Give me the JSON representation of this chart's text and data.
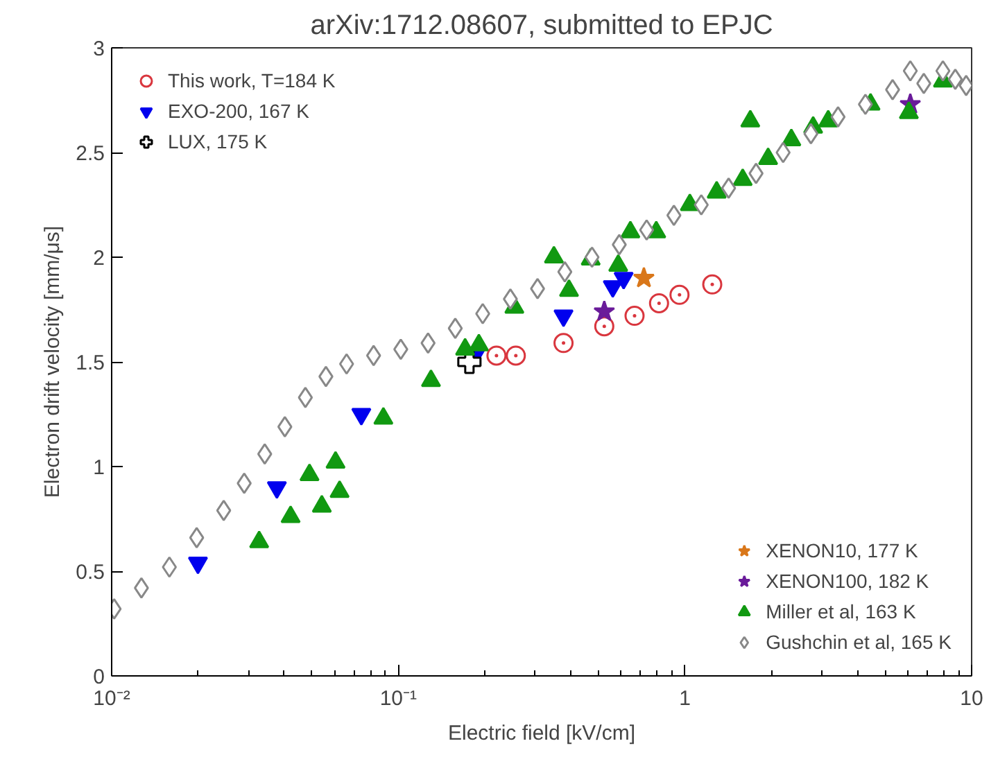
{
  "chart_data": {
    "type": "scatter",
    "title": "arXiv:1712.08607, submitted to EPJC",
    "xlabel": "Electric field [kV/cm]",
    "ylabel": "Electron drift velocity [mm/μs]",
    "log": "x",
    "grid": false,
    "legend": [
      "top left",
      "bottom right"
    ],
    "xlim": [
      0.01,
      10
    ],
    "ylim": [
      0,
      3
    ],
    "xticks": [
      {
        "value": 0.01,
        "label": "10⁻²"
      },
      {
        "value": 0.02,
        "label": null
      },
      {
        "value": 0.03,
        "label": null
      },
      {
        "value": 0.04,
        "label": null
      },
      {
        "value": 0.05,
        "label": null
      },
      {
        "value": 0.06,
        "label": null
      },
      {
        "value": 0.07,
        "label": null
      },
      {
        "value": 0.08,
        "label": null
      },
      {
        "value": 0.09,
        "label": null
      },
      {
        "value": 0.1,
        "label": "10⁻¹"
      },
      {
        "value": 0.2,
        "label": null
      },
      {
        "value": 0.3,
        "label": null
      },
      {
        "value": 0.4,
        "label": null
      },
      {
        "value": 0.5,
        "label": null
      },
      {
        "value": 0.6,
        "label": null
      },
      {
        "value": 0.7,
        "label": null
      },
      {
        "value": 0.8,
        "label": null
      },
      {
        "value": 0.9,
        "label": null
      },
      1,
      {
        "value": 2,
        "label": null
      },
      {
        "value": 3,
        "label": null
      },
      {
        "value": 4,
        "label": null
      },
      {
        "value": 5,
        "label": null
      },
      {
        "value": 6,
        "label": null
      },
      {
        "value": 7,
        "label": null
      },
      {
        "value": 8,
        "label": null
      },
      {
        "value": 9,
        "label": null
      },
      10
    ],
    "yticks": [
      0,
      0.5,
      1,
      1.5,
      2,
      2.5,
      3
    ],
    "series": [
      {
        "name": "This work, T=184 K",
        "color": "#d9363e",
        "marker": "circle",
        "x": [
          0.22,
          0.257,
          0.377,
          0.523,
          0.667,
          0.812,
          0.957,
          1.245
        ],
        "values": [
          1.53,
          1.53,
          1.59,
          1.67,
          1.72,
          1.78,
          1.82,
          1.87
        ]
      },
      {
        "name": "EXO-200, 167 K",
        "color": "#0000ee",
        "x": [
          0.02,
          0.0377,
          0.0743,
          0.185,
          0.377,
          0.56,
          0.611
        ],
        "values": [
          0.54,
          0.9,
          1.25,
          1.53,
          1.72,
          1.86,
          1.9
        ]
      },
      {
        "name": "LUX, 175 K",
        "color": "#000000",
        "marker": "cross",
        "x": [
          0.177
        ],
        "values": [
          1.5
        ]
      },
      {
        "name": "XENON10, 177 K",
        "color": "#d9771a",
        "marker": "star",
        "x": [
          0.719
        ],
        "values": [
          1.9
        ]
      },
      {
        "name": "XENON100, 182 K",
        "color": "#6a1b9a",
        "marker": "star",
        "x": [
          0.523,
          6.11
        ],
        "values": [
          1.74,
          2.73
        ]
      },
      {
        "name": "Miller et al, 163 K",
        "color": "#119911",
        "marker": "triangle",
        "x": [
          0.0327,
          0.0421,
          0.049,
          0.0541,
          0.0604,
          0.0624,
          0.0887,
          0.13,
          0.171,
          0.191,
          0.254,
          0.349,
          0.394,
          0.469,
          0.585,
          0.645,
          0.794,
          1.04,
          1.29,
          1.59,
          1.69,
          1.95,
          2.35,
          2.8,
          3.16,
          4.44,
          6.04,
          7.94
        ],
        "values": [
          0.64,
          0.76,
          0.96,
          0.81,
          1.02,
          0.88,
          1.23,
          1.41,
          1.56,
          1.58,
          1.76,
          2.0,
          1.84,
          1.99,
          1.96,
          2.12,
          2.12,
          2.25,
          2.31,
          2.37,
          2.65,
          2.47,
          2.56,
          2.62,
          2.65,
          2.73,
          2.69,
          2.84
        ]
      },
      {
        "name": "Gushchin et al, 165 K",
        "color": "#888888",
        "marker": "diamond",
        "x": [
          0.0102,
          0.0127,
          0.0159,
          0.0198,
          0.0246,
          0.029,
          0.0342,
          0.0402,
          0.0474,
          0.0559,
          0.066,
          0.082,
          0.102,
          0.127,
          0.158,
          0.197,
          0.246,
          0.306,
          0.381,
          0.474,
          0.59,
          0.735,
          0.915,
          1.14,
          1.42,
          1.77,
          2.2,
          2.75,
          3.42,
          4.26,
          5.3,
          6.11,
          6.81,
          7.94,
          8.77,
          9.57
        ],
        "values": [
          0.32,
          0.42,
          0.52,
          0.66,
          0.79,
          0.92,
          1.06,
          1.19,
          1.33,
          1.43,
          1.49,
          1.53,
          1.56,
          1.59,
          1.66,
          1.73,
          1.8,
          1.85,
          1.93,
          2.0,
          2.06,
          2.13,
          2.2,
          2.25,
          2.33,
          2.4,
          2.5,
          2.59,
          2.67,
          2.73,
          2.8,
          2.89,
          2.83,
          2.89,
          2.85,
          2.82
        ]
      }
    ]
  }
}
